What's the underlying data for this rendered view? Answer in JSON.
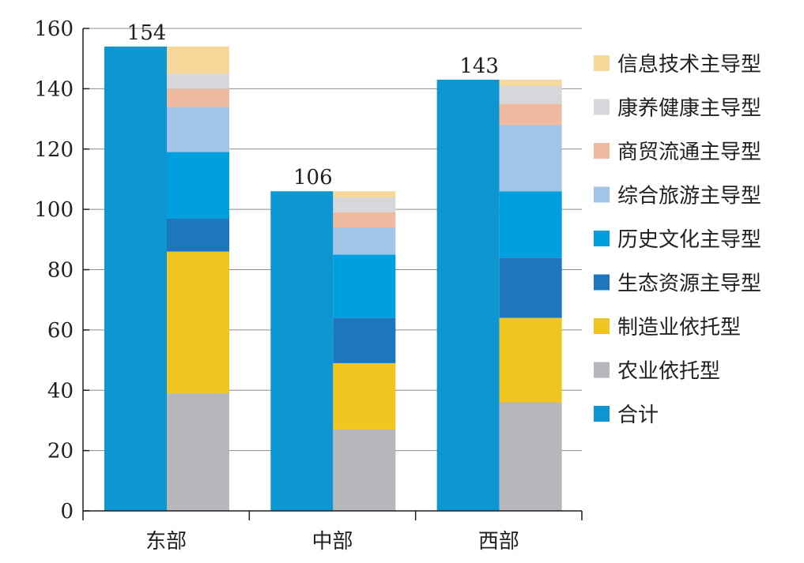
{
  "chart_data": {
    "type": "bar",
    "categories": [
      "东部",
      "中部",
      "西部"
    ],
    "ylim": [
      0,
      160
    ],
    "yticks": [
      0,
      20,
      40,
      60,
      80,
      100,
      120,
      140,
      160
    ],
    "grid": true,
    "legend_position": "right",
    "total_series": {
      "name": "合计",
      "color": "#0e96d1",
      "values": [
        154,
        106,
        143
      ],
      "labels": [
        "154",
        "106",
        "143"
      ]
    },
    "stacked_series": [
      {
        "name": "农业依托型",
        "color": "#b5b7ba",
        "values": [
          39,
          27,
          36
        ]
      },
      {
        "name": "制造业依托型",
        "color": "#f0c520",
        "values": [
          47,
          22,
          28
        ]
      },
      {
        "name": "生态资源主导型",
        "color": "#1e77bd",
        "values": [
          11,
          15,
          20
        ]
      },
      {
        "name": "历史文化主导型",
        "color": "#009fe0",
        "values": [
          22,
          21,
          22
        ]
      },
      {
        "name": "综合旅游主导型",
        "color": "#a2c4e6",
        "values": [
          15,
          9,
          22
        ]
      },
      {
        "name": "商贸流通主导型",
        "color": "#f0baa0",
        "values": [
          6,
          5,
          7
        ]
      },
      {
        "name": "康养健康主导型",
        "color": "#d6d7da",
        "values": [
          5,
          5,
          6
        ]
      },
      {
        "name": "信息技术主导型",
        "color": "#f7d89a",
        "values": [
          9,
          2,
          2
        ]
      }
    ],
    "legend_order": [
      "信息技术主导型",
      "康养健康主导型",
      "商贸流通主导型",
      "综合旅游主导型",
      "历史文化主导型",
      "生态资源主导型",
      "制造业依托型",
      "农业依托型",
      "合计"
    ]
  }
}
